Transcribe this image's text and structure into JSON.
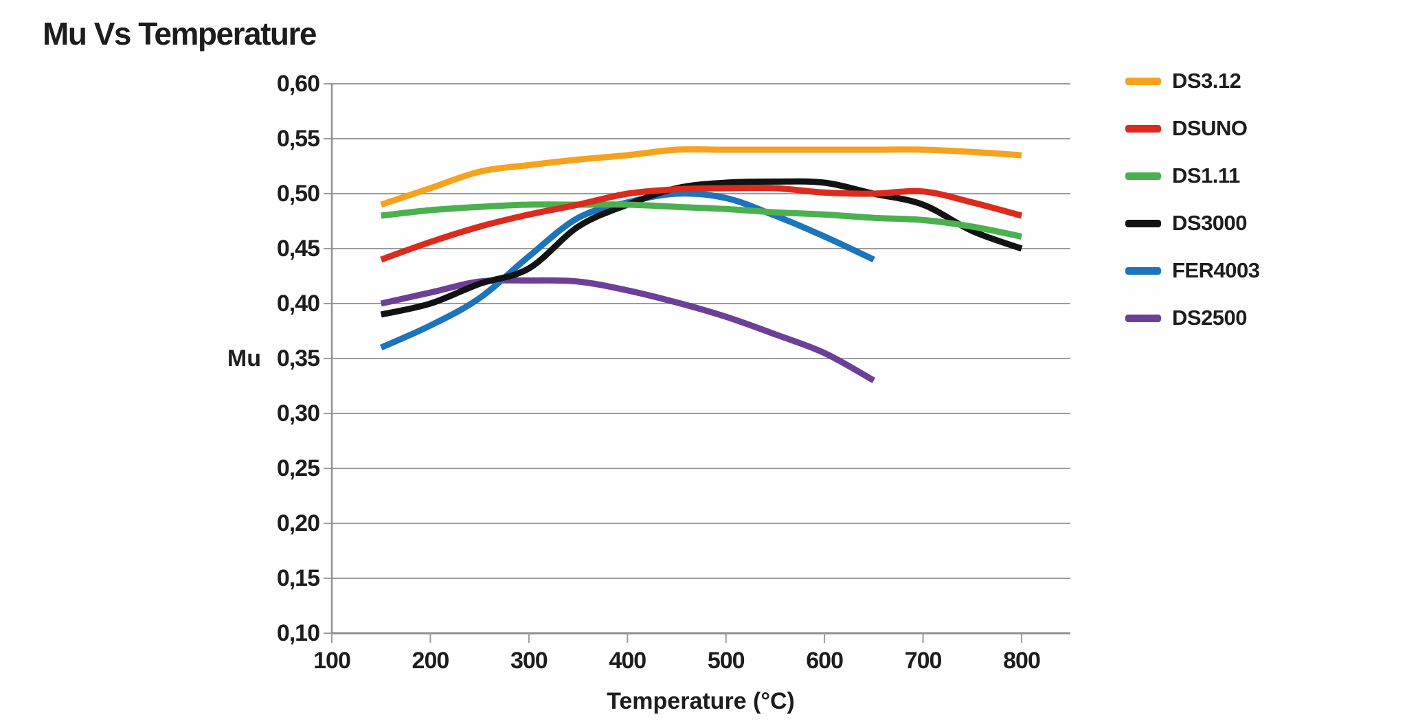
{
  "title": "Mu Vs Temperature",
  "colors": {
    "background": "#fefefe",
    "grid": "#9c9c9c",
    "axis": "#8f8f8f",
    "text": "#1d1d1d"
  },
  "chart_data": {
    "type": "line",
    "title": "Mu Vs Temperature",
    "xlabel": "Temperature (°C)",
    "ylabel": "Mu",
    "xlim": [
      100,
      850
    ],
    "ylim": [
      0.1,
      0.6
    ],
    "x_ticks": [
      100,
      200,
      300,
      400,
      500,
      600,
      700,
      800
    ],
    "y_ticks": [
      0.1,
      0.15,
      0.2,
      0.25,
      0.3,
      0.35,
      0.4,
      0.45,
      0.5,
      0.55,
      0.6
    ],
    "y_tick_labels": [
      "0,10",
      "0,15",
      "0,20",
      "0,25",
      "0,30",
      "0,35",
      "0,40",
      "0,45",
      "0,50",
      "0,55",
      "0,60"
    ],
    "grid": "horizontal-only",
    "legend_position": "right",
    "decimal_separator": ",",
    "series": [
      {
        "name": "DS3.12",
        "color": "#F6A21D",
        "x": [
          150,
          200,
          250,
          300,
          350,
          400,
          450,
          500,
          550,
          600,
          650,
          700,
          750,
          800
        ],
        "values": [
          0.49,
          0.505,
          0.52,
          0.526,
          0.531,
          0.535,
          0.54,
          0.54,
          0.54,
          0.54,
          0.54,
          0.54,
          0.538,
          0.535
        ]
      },
      {
        "name": "DSUNO",
        "color": "#DD2A1E",
        "x": [
          150,
          200,
          250,
          300,
          350,
          400,
          450,
          500,
          550,
          600,
          650,
          700,
          750,
          800
        ],
        "values": [
          0.44,
          0.456,
          0.47,
          0.481,
          0.49,
          0.5,
          0.504,
          0.505,
          0.505,
          0.501,
          0.5,
          0.502,
          0.492,
          0.48
        ]
      },
      {
        "name": "DS1.11",
        "color": "#4BB04F",
        "x": [
          150,
          200,
          250,
          300,
          350,
          400,
          450,
          500,
          550,
          600,
          650,
          700,
          750,
          800
        ],
        "values": [
          0.48,
          0.485,
          0.488,
          0.49,
          0.49,
          0.49,
          0.488,
          0.486,
          0.483,
          0.481,
          0.478,
          0.476,
          0.47,
          0.461
        ]
      },
      {
        "name": "DS3000",
        "color": "#121212",
        "x": [
          150,
          200,
          250,
          300,
          350,
          400,
          450,
          500,
          550,
          600,
          650,
          700,
          750,
          800
        ],
        "values": [
          0.39,
          0.4,
          0.418,
          0.432,
          0.47,
          0.49,
          0.505,
          0.51,
          0.511,
          0.51,
          0.5,
          0.49,
          0.466,
          0.45
        ]
      },
      {
        "name": "FER4003",
        "color": "#1C74BB",
        "x": [
          150,
          200,
          250,
          300,
          350,
          400,
          450,
          500,
          550,
          600,
          650
        ],
        "values": [
          0.36,
          0.38,
          0.405,
          0.443,
          0.478,
          0.492,
          0.5,
          0.496,
          0.48,
          0.461,
          0.44
        ]
      },
      {
        "name": "DS2500",
        "color": "#6C4098",
        "x": [
          150,
          200,
          250,
          300,
          350,
          400,
          450,
          500,
          550,
          600,
          650
        ],
        "values": [
          0.4,
          0.41,
          0.42,
          0.421,
          0.42,
          0.412,
          0.401,
          0.388,
          0.372,
          0.355,
          0.33
        ]
      }
    ]
  }
}
